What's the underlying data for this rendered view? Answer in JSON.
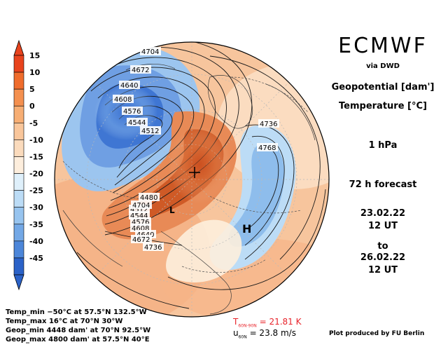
{
  "header": {
    "brand": "ECMWF",
    "via": "via DWD",
    "field_line1": "Geopotential [dam']",
    "field_line2": "Temperature [°C]",
    "level": "1 hPa",
    "forecast": "72 h forecast",
    "init_date": "23.02.22",
    "init_time": "12 UT",
    "to_word": "to",
    "valid_date": "26.02.22",
    "valid_time": "12 UT"
  },
  "colorbar": {
    "ticks": [
      "15",
      "10",
      "5",
      "0",
      "-5",
      "-10",
      "-15",
      "-20",
      "-25",
      "-30",
      "-35",
      "-40",
      "-45"
    ],
    "colors": [
      "#e8431d",
      "#ef6c2c",
      "#f4904f",
      "#f7ae74",
      "#f9c69b",
      "#fbdbbd",
      "#fdeedd",
      "#dff0fb",
      "#bcdcf6",
      "#97c4ef",
      "#73a8e6",
      "#4c86d9",
      "#2b62c8"
    ]
  },
  "stats": {
    "temp_min": "Temp_min −50°C at 57.5°N 132.5°W",
    "temp_max": "Temp_max 16°C at 70°N 30°W",
    "geop_min": "Geop_min 4448 dam' at 70°N 92.5°W",
    "geop_max": "Geop_max 4800 dam' at 57.5°N 40°E"
  },
  "bottom": {
    "t_label": "T",
    "t_sub": "60N-90N",
    "t_value": "= 21.81 K",
    "u_label": "u",
    "u_sub": "60N",
    "u_value": "= 23.8 m/s",
    "credit": "Plot produced by FU Berlin"
  },
  "map": {
    "contour_labels": [
      "4704",
      "4672",
      "4640",
      "4608",
      "4576",
      "4544",
      "4512",
      "4480",
      "4736",
      "4768",
      "4736",
      "4512",
      "4544",
      "4576",
      "4608",
      "4640",
      "4672",
      "4704"
    ],
    "pressure_centers": [
      "H",
      "L"
    ]
  }
}
